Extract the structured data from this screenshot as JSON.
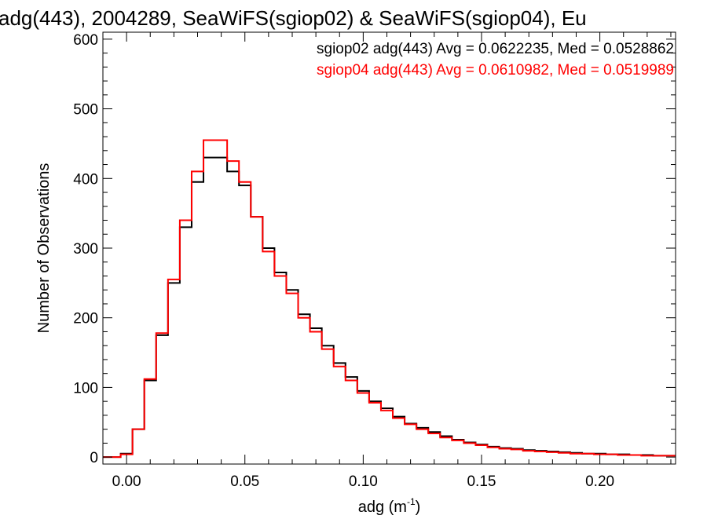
{
  "chart_data": {
    "type": "line",
    "title": "adg(443), 2004289, SeaWiFS(sgiop02) & SeaWiFS(sgiop04), Eu",
    "xlabel": "adg (m",
    "xlabel_sup": "-1",
    "xlabel_close": ")",
    "ylabel": "Number of Observations",
    "xlim": [
      -0.01,
      0.232
    ],
    "ylim": [
      -10,
      610
    ],
    "xticks": [
      0.0,
      0.05,
      0.1,
      0.15,
      0.2
    ],
    "xtick_labels": [
      "0.00",
      "0.05",
      "0.10",
      "0.15",
      "0.20"
    ],
    "yticks": [
      0,
      100,
      200,
      300,
      400,
      500,
      600
    ],
    "ytick_labels": [
      "0",
      "100",
      "200",
      "300",
      "400",
      "500",
      "600"
    ],
    "legend_position": "top-right",
    "series": [
      {
        "name": "sgiop02 adg(443) Avg = 0.0622235, Med = 0.0528862",
        "color": "#000000",
        "x": [
          0.0,
          0.005,
          0.01,
          0.015,
          0.02,
          0.025,
          0.03,
          0.035,
          0.04,
          0.045,
          0.05,
          0.055,
          0.06,
          0.065,
          0.07,
          0.075,
          0.08,
          0.085,
          0.09,
          0.095,
          0.1,
          0.105,
          0.11,
          0.115,
          0.12,
          0.125,
          0.13,
          0.135,
          0.14,
          0.145,
          0.15,
          0.155,
          0.16,
          0.165,
          0.17,
          0.175,
          0.18,
          0.185,
          0.19,
          0.195,
          0.2,
          0.205,
          0.21,
          0.215,
          0.22,
          0.225,
          0.23
        ],
        "y": [
          5,
          40,
          110,
          175,
          250,
          330,
          395,
          430,
          430,
          410,
          390,
          345,
          300,
          265,
          240,
          205,
          185,
          160,
          135,
          115,
          95,
          80,
          70,
          58,
          48,
          42,
          36,
          30,
          25,
          21,
          18,
          15,
          13,
          12,
          10,
          9,
          8,
          7,
          6,
          5,
          5,
          4,
          4,
          3,
          3,
          2,
          2
        ]
      },
      {
        "name": "sgiop04 adg(443) Avg = 0.0610982, Med = 0.0519989",
        "color": "#ff0000",
        "x": [
          0.0,
          0.005,
          0.01,
          0.015,
          0.02,
          0.025,
          0.03,
          0.035,
          0.04,
          0.045,
          0.05,
          0.055,
          0.06,
          0.065,
          0.07,
          0.075,
          0.08,
          0.085,
          0.09,
          0.095,
          0.1,
          0.105,
          0.11,
          0.115,
          0.12,
          0.125,
          0.13,
          0.135,
          0.14,
          0.145,
          0.15,
          0.155,
          0.16,
          0.165,
          0.17,
          0.175,
          0.18,
          0.185,
          0.19,
          0.195,
          0.2,
          0.205,
          0.21,
          0.215,
          0.22,
          0.225,
          0.23
        ],
        "y": [
          4,
          40,
          112,
          178,
          255,
          340,
          410,
          455,
          455,
          425,
          395,
          345,
          295,
          260,
          235,
          200,
          180,
          155,
          130,
          110,
          92,
          78,
          67,
          56,
          47,
          40,
          34,
          28,
          24,
          20,
          17,
          14,
          12,
          11,
          9,
          8,
          7,
          6,
          5,
          5,
          4,
          4,
          3,
          3,
          2,
          2,
          2
        ]
      }
    ]
  }
}
